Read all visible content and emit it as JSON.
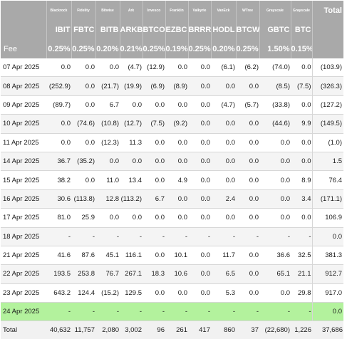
{
  "table": {
    "issuers": [
      "Blackrock",
      "Fidelity",
      "Bitwise",
      "Ark",
      "Invesco",
      "Franklin",
      "Valkyrie",
      "VanEck",
      "WTree",
      "Grayscale",
      "Grayscale"
    ],
    "total_label": "Total",
    "tickers": [
      "IBIT",
      "FBTC",
      "BITB",
      "ARKB",
      "BTCO",
      "EZBC",
      "BRRR",
      "HODL",
      "BTCW",
      "GBTC",
      "BTC"
    ],
    "fee_label": "Fee",
    "fees": [
      "0.25%",
      "0.25%",
      "0.20%",
      "0.21%",
      "0.25%",
      "0.19%",
      "0.25%",
      "0.20%",
      "0.25%",
      "1.50%",
      "0.15%"
    ],
    "rows": [
      {
        "date": "07 Apr 2025",
        "values": [
          "0.0",
          "0.0",
          "0.0",
          "(4.7)",
          "(12.9)",
          "0.0",
          "0.0",
          "(6.1)",
          "(6.2)",
          "(74.0)",
          "0.0"
        ],
        "total": "(103.9)"
      },
      {
        "date": "08 Apr 2025",
        "values": [
          "(252.9)",
          "0.0",
          "(21.7)",
          "(19.9)",
          "(6.9)",
          "(8.9)",
          "0.0",
          "0.0",
          "0.0",
          "(8.5)",
          "(7.5)"
        ],
        "total": "(326.3)"
      },
      {
        "date": "09 Apr 2025",
        "values": [
          "(89.7)",
          "0.0",
          "6.7",
          "0.0",
          "0.0",
          "0.0",
          "0.0",
          "(4.7)",
          "(5.7)",
          "(33.8)",
          "0.0"
        ],
        "total": "(127.2)"
      },
      {
        "date": "10 Apr 2025",
        "values": [
          "0.0",
          "(74.6)",
          "(10.8)",
          "(12.7)",
          "(7.5)",
          "(9.2)",
          "0.0",
          "0.0",
          "0.0",
          "(44.6)",
          "9.9"
        ],
        "total": "(149.5)"
      },
      {
        "date": "11 Apr 2025",
        "values": [
          "0.0",
          "0.0",
          "(12.3)",
          "11.3",
          "0.0",
          "0.0",
          "0.0",
          "0.0",
          "0.0",
          "0.0",
          "0.0"
        ],
        "total": "(1.0)"
      },
      {
        "date": "14 Apr 2025",
        "values": [
          "36.7",
          "(35.2)",
          "0.0",
          "0.0",
          "0.0",
          "0.0",
          "0.0",
          "0.0",
          "0.0",
          "0.0",
          "0.0"
        ],
        "total": "1.5"
      },
      {
        "date": "15 Apr 2025",
        "values": [
          "38.2",
          "0.0",
          "11.0",
          "13.4",
          "0.0",
          "4.9",
          "0.0",
          "0.0",
          "0.0",
          "0.0",
          "8.9"
        ],
        "total": "76.4"
      },
      {
        "date": "16 Apr 2025",
        "values": [
          "30.6",
          "(113.8)",
          "12.8",
          "(113.2)",
          "6.7",
          "0.0",
          "0.0",
          "2.4",
          "0.0",
          "0.0",
          "3.4"
        ],
        "total": "(171.1)"
      },
      {
        "date": "17 Apr 2025",
        "values": [
          "81.0",
          "25.9",
          "0.0",
          "0.0",
          "0.0",
          "0.0",
          "0.0",
          "0.0",
          "0.0",
          "0.0",
          "0.0"
        ],
        "total": "106.9"
      },
      {
        "date": "18 Apr 2025",
        "values": [
          "-",
          "-",
          "-",
          "-",
          "-",
          "-",
          "-",
          "-",
          "-",
          "-",
          "-"
        ],
        "total": "0.0"
      },
      {
        "date": "21 Apr 2025",
        "values": [
          "41.6",
          "87.6",
          "45.1",
          "116.1",
          "0.0",
          "10.1",
          "0.0",
          "11.7",
          "0.0",
          "36.6",
          "32.5"
        ],
        "total": "381.3"
      },
      {
        "date": "22 Apr 2025",
        "values": [
          "193.5",
          "253.8",
          "76.7",
          "267.1",
          "18.3",
          "10.6",
          "0.0",
          "6.5",
          "0.0",
          "65.1",
          "21.1"
        ],
        "total": "912.7"
      },
      {
        "date": "23 Apr 2025",
        "values": [
          "643.2",
          "124.4",
          "(15.2)",
          "129.5",
          "0.0",
          "0.0",
          "0.0",
          "5.3",
          "0.0",
          "0.0",
          "29.8"
        ],
        "total": "917.0"
      },
      {
        "date": "24 Apr 2025",
        "values": [
          "-",
          "-",
          "-",
          "-",
          "-",
          "-",
          "-",
          "-",
          "-",
          "-",
          "-"
        ],
        "total": "0.0",
        "highlight": true
      }
    ],
    "totals_label": "Total",
    "totals": [
      "40,632",
      "11,757",
      "2,080",
      "3,002",
      "96",
      "261",
      "417",
      "860",
      "37",
      "(22,680)",
      "1,226"
    ],
    "grand_total": "37,686"
  },
  "colors": {
    "header_bg": "#a9a9a9",
    "negative": "#e0232e",
    "highlight_row": "#b3f29d",
    "alt_row": "#f4f4f4"
  }
}
